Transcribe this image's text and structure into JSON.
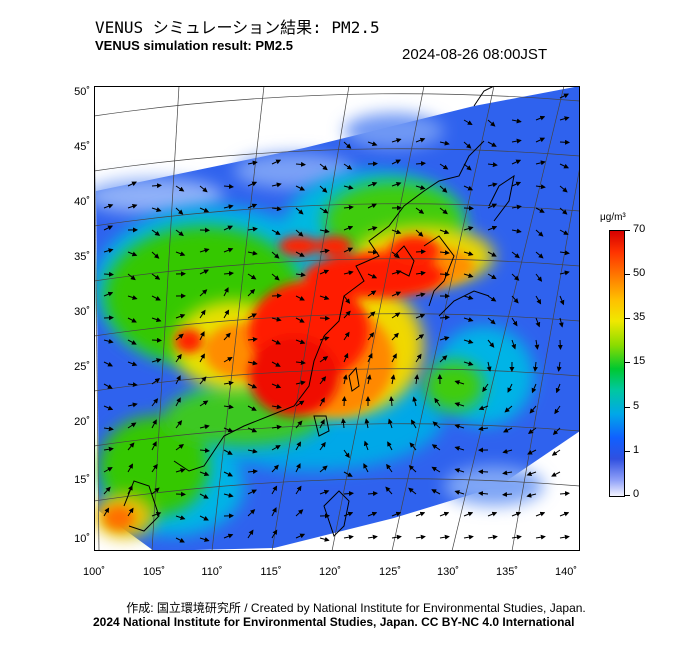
{
  "header": {
    "title_jp": "VENUS シミュレーション結果: PM2.5",
    "title_en": "VENUS simulation result: PM2.5",
    "timestamp": "2024-08-26 08:00JST"
  },
  "map": {
    "region": "East Asia (100°E–140°E, 10°N–50°N)",
    "lat_labels": [
      "50˚",
      "45˚",
      "40˚",
      "35˚",
      "30˚",
      "25˚",
      "20˚",
      "15˚",
      "10˚"
    ],
    "lon_labels": [
      "100˚",
      "105˚",
      "110˚",
      "115˚",
      "120˚",
      "125˚",
      "130˚",
      "135˚",
      "140˚"
    ],
    "colors": {
      "very_high": "#ff1a00",
      "high": "#ff8c00",
      "mid": "#e8e000",
      "low_mid": "#34c800",
      "low": "#00b4e6",
      "very_low": "#2a5cf0",
      "background": "#ffffff"
    }
  },
  "colorbar": {
    "unit": "μg/m³",
    "ticks": [
      "70",
      "50",
      "35",
      "15",
      "5",
      "1",
      "0"
    ]
  },
  "footer": {
    "credit": "作成: 国立環境研究所 / Created by National Institute for Environmental Studies, Japan.",
    "license": "2024 National Institute for Environmental Studies, Japan. CC BY-NC 4.0 International"
  }
}
